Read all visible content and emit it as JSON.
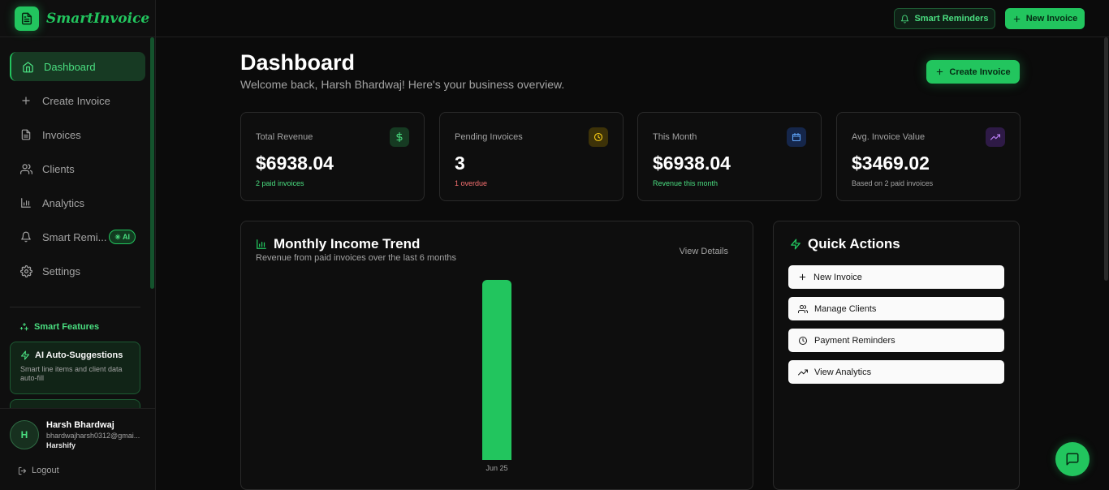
{
  "app": {
    "name": "SmartInvoice"
  },
  "topbar": {
    "reminders_label": "Smart Reminders",
    "new_invoice_label": "New Invoice"
  },
  "sidebar": {
    "items": [
      {
        "label": "Dashboard",
        "icon": "home-icon",
        "active": true
      },
      {
        "label": "Create Invoice",
        "icon": "plus-icon"
      },
      {
        "label": "Invoices",
        "icon": "file-icon"
      },
      {
        "label": "Clients",
        "icon": "users-icon"
      },
      {
        "label": "Analytics",
        "icon": "bar-chart-icon"
      },
      {
        "label": "Smart Remi...",
        "icon": "bell-icon",
        "badge": "AI"
      },
      {
        "label": "Settings",
        "icon": "gear-icon"
      }
    ],
    "smart_features_title": "Smart Features",
    "feature": {
      "title": "AI Auto-Suggestions",
      "description": "Smart line items and client data auto-fill"
    },
    "user": {
      "initial": "H",
      "name": "Harsh Bhardwaj",
      "email": "bhardwajharsh0312@gmai...",
      "org": "Harshify"
    },
    "logout_label": "Logout"
  },
  "header": {
    "title": "Dashboard",
    "subtitle": "Welcome back, Harsh Bhardwaj! Here's your business overview.",
    "create_label": "Create Invoice"
  },
  "stats": [
    {
      "label": "Total Revenue",
      "value": "$6938.04",
      "sub": "2 paid invoices",
      "sub_color": "#4ade80",
      "icon": "dollar-icon"
    },
    {
      "label": "Pending Invoices",
      "value": "3",
      "sub": "1 overdue",
      "sub_color": "#f87171",
      "icon": "clock-icon"
    },
    {
      "label": "This Month",
      "value": "$6938.04",
      "sub": "Revenue this month",
      "sub_color": "#4ade80",
      "icon": "calendar-icon"
    },
    {
      "label": "Avg. Invoice Value",
      "value": "$3469.02",
      "sub": "Based on 2 paid invoices",
      "sub_color": "#a3a3a3",
      "icon": "trending-up-icon"
    }
  ],
  "income_chart": {
    "title": "Monthly Income Trend",
    "subtitle": "Revenue from paid invoices over the last 6 months",
    "view_details_label": "View Details"
  },
  "chart_data": {
    "type": "bar",
    "categories": [
      "Jun 25"
    ],
    "values": [
      6938.04
    ],
    "title": "Monthly Income Trend",
    "xlabel": "",
    "ylabel": "",
    "ylim": [
      0,
      6938.04
    ],
    "color": "#22c55e",
    "grid": false
  },
  "quick_actions": {
    "title": "Quick Actions",
    "items": [
      {
        "label": "New Invoice",
        "icon": "plus-icon"
      },
      {
        "label": "Manage Clients",
        "icon": "users-icon"
      },
      {
        "label": "Payment Reminders",
        "icon": "clock-icon"
      },
      {
        "label": "View Analytics",
        "icon": "trending-up-icon"
      }
    ]
  },
  "colors": {
    "accent": "#22c55e",
    "background": "#0b0b0b",
    "card_border": "#2a2a2a"
  }
}
